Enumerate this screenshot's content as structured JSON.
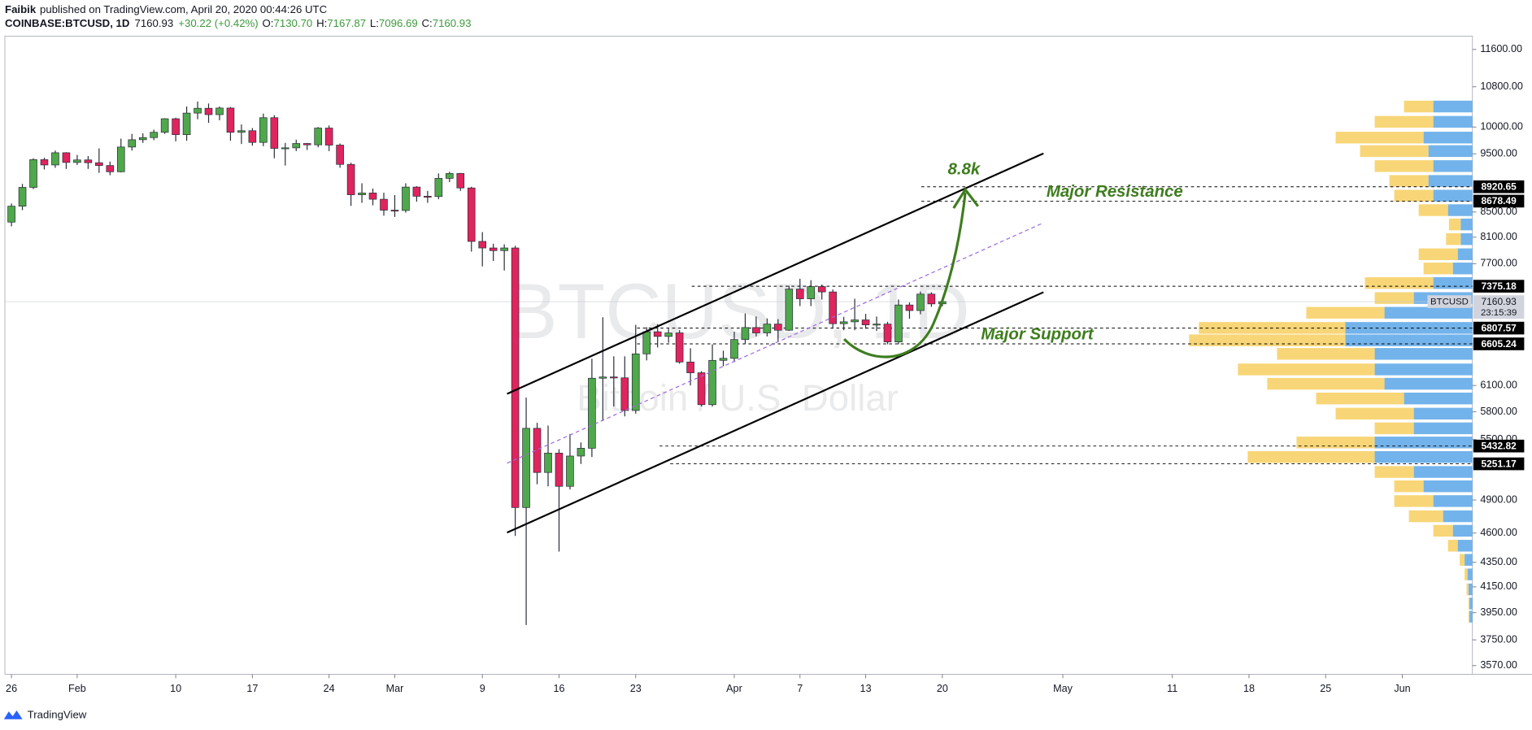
{
  "header": {
    "author": "Faibik",
    "published": "published on TradingView.com, April 20, 2020 00:44:26 UTC",
    "symbol": "COINBASE:BTCUSD, 1D",
    "last": "7160.93",
    "change": "+30.22 (+0.42%)",
    "ohlc": [
      {
        "label": "O:",
        "value": "7130.70"
      },
      {
        "label": "H:",
        "value": "7167.87"
      },
      {
        "label": "L:",
        "value": "7096.69"
      },
      {
        "label": "C:",
        "value": "7160.93"
      }
    ]
  },
  "chart_data": {
    "type": "candlestick",
    "watermark": "BTCUSD, 1D",
    "watermark_subtitle": "Bitcoin / U.S. Dollar",
    "annotations": [
      "8.8k",
      "Major Resistance",
      "Major Support"
    ],
    "x": [
      0,
      1,
      2,
      3,
      4,
      5,
      6,
      7,
      8,
      9,
      10,
      11,
      12,
      13,
      14,
      15,
      16,
      17,
      18,
      19,
      20,
      21,
      22,
      23,
      24,
      25,
      26,
      27,
      28,
      29,
      30,
      31,
      32,
      33,
      34,
      35,
      36,
      37,
      38,
      39,
      40,
      41,
      42,
      43,
      44,
      45,
      46,
      47,
      48,
      49,
      50,
      51,
      52,
      53,
      54,
      55,
      56,
      57,
      58,
      59,
      60,
      61,
      62,
      63,
      64,
      65,
      66,
      67,
      68,
      69,
      70,
      71,
      72,
      73,
      74,
      75,
      76,
      77,
      78,
      79,
      80,
      81,
      82,
      83,
      84,
      85
    ],
    "open": [
      8337,
      8595,
      8910,
      9395,
      9300,
      9520,
      9345,
      9390,
      9340,
      9290,
      9180,
      9625,
      9760,
      9800,
      9900,
      10160,
      9855,
      10270,
      10365,
      10240,
      10370,
      9900,
      9930,
      9710,
      10180,
      9600,
      9610,
      9690,
      9665,
      9980,
      9660,
      9310,
      8785,
      8815,
      8710,
      8530,
      8525,
      8915,
      8760,
      8755,
      9065,
      9150,
      8900,
      8035,
      7935,
      7895,
      7935,
      4830,
      5620,
      5165,
      5360,
      5030,
      5330,
      5410,
      6185,
      6200,
      6190,
      5815,
      6480,
      6760,
      6700,
      6745,
      6380,
      6250,
      5880,
      6400,
      6425,
      6660,
      6815,
      6745,
      6860,
      6780,
      7335,
      7200,
      7370,
      7295,
      6865,
      6890,
      6915,
      6850,
      6860,
      6630,
      7115,
      7040,
      7265,
      7130.7
    ],
    "high": [
      8640,
      8970,
      9420,
      9430,
      9560,
      9530,
      9480,
      9460,
      9600,
      9360,
      9780,
      9870,
      9880,
      9950,
      10170,
      10180,
      10400,
      10500,
      10460,
      10400,
      10390,
      10050,
      9980,
      10260,
      10230,
      9700,
      9760,
      9700,
      10000,
      10030,
      9690,
      9340,
      8980,
      8890,
      8820,
      8780,
      8980,
      8930,
      8850,
      9150,
      9180,
      9160,
      8920,
      8180,
      8000,
      7990,
      7970,
      5960,
      5680,
      5650,
      5400,
      5560,
      5470,
      6420,
      6950,
      6450,
      6450,
      6850,
      6820,
      6860,
      6800,
      6780,
      6550,
      6270,
      6600,
      6520,
      6760,
      7000,
      6960,
      6935,
      6925,
      7380,
      7480,
      7460,
      7400,
      7330,
      6955,
      7200,
      6995,
      6960,
      6890,
      7190,
      7150,
      7300,
      7290,
      7167.87
    ],
    "low": [
      8270,
      8530,
      8880,
      9220,
      9250,
      9230,
      9300,
      9230,
      9160,
      9120,
      9170,
      9560,
      9700,
      9750,
      9870,
      9730,
      9740,
      10150,
      10080,
      10130,
      9740,
      9680,
      9650,
      9640,
      9420,
      9290,
      9550,
      9570,
      9620,
      9550,
      9250,
      8600,
      8650,
      8610,
      8440,
      8420,
      8490,
      8670,
      8650,
      8710,
      9000,
      8850,
      7880,
      7660,
      7740,
      7600,
      4575,
      3858,
      5050,
      5030,
      4440,
      5000,
      5250,
      5320,
      5700,
      5860,
      5750,
      5780,
      6400,
      6560,
      6620,
      6360,
      6100,
      5860,
      5860,
      6330,
      6380,
      6600,
      6700,
      6700,
      6640,
      6770,
      7100,
      7100,
      7190,
      6800,
      6780,
      6780,
      6800,
      6770,
      6600,
      6600,
      6930,
      6990,
      7090,
      7096.69
    ],
    "close": [
      8595,
      8910,
      9395,
      9300,
      9520,
      9345,
      9390,
      9340,
      9290,
      9180,
      9625,
      9760,
      9800,
      9900,
      10160,
      9855,
      10270,
      10365,
      10240,
      10370,
      9900,
      9930,
      9710,
      10180,
      9600,
      9610,
      9690,
      9665,
      9980,
      9660,
      9310,
      8785,
      8815,
      8710,
      8530,
      8525,
      8915,
      8760,
      8755,
      9065,
      9150,
      8900,
      8035,
      7935,
      7895,
      7935,
      4830,
      5620,
      5165,
      5360,
      5030,
      5330,
      5410,
      6185,
      6200,
      6190,
      5815,
      6480,
      6760,
      6700,
      6745,
      6380,
      6250,
      5880,
      6400,
      6425,
      6660,
      6815,
      6745,
      6860,
      6780,
      7335,
      7200,
      7370,
      7295,
      6865,
      6890,
      6915,
      6850,
      6860,
      6630,
      7115,
      7040,
      7265,
      7130,
      7160.93
    ],
    "up_color": "#4fa84b",
    "down_color": "#e0245e",
    "xlim": [
      -0.6,
      133.4
    ],
    "xticks": [
      {
        "value": 0,
        "label": "26"
      },
      {
        "value": 6,
        "label": "Feb"
      },
      {
        "value": 15,
        "label": "10"
      },
      {
        "value": 22,
        "label": "17"
      },
      {
        "value": 29,
        "label": "24"
      },
      {
        "value": 35,
        "label": "Mar"
      },
      {
        "value": 43,
        "label": "9"
      },
      {
        "value": 50,
        "label": "16"
      },
      {
        "value": 57,
        "label": "23"
      },
      {
        "value": 66,
        "label": "Apr"
      },
      {
        "value": 72,
        "label": "7"
      },
      {
        "value": 78,
        "label": "13"
      },
      {
        "value": 85,
        "label": "20"
      },
      {
        "value": 96,
        "label": "May"
      },
      {
        "value": 106,
        "label": "11"
      },
      {
        "value": 113,
        "label": "18"
      },
      {
        "value": 120,
        "label": "25"
      },
      {
        "value": 127,
        "label": "Jun"
      }
    ],
    "ylim": [
      3511,
      11898
    ],
    "yscale": "log",
    "grid": false,
    "yticks": [
      {
        "value": 11600,
        "label": "11600.00"
      },
      {
        "value": 10800,
        "label": "10800.00"
      },
      {
        "value": 10000,
        "label": "10000.00"
      },
      {
        "value": 9500,
        "label": "9500.00"
      },
      {
        "value": 8500,
        "label": "8500.00"
      },
      {
        "value": 8100,
        "label": "8100.00"
      },
      {
        "value": 7700,
        "label": "7700.00"
      },
      {
        "value": 6100,
        "label": "6100.00"
      },
      {
        "value": 5800,
        "label": "5800.00"
      },
      {
        "value": 5500,
        "label": "5500.00"
      },
      {
        "value": 4900,
        "label": "4900.00"
      },
      {
        "value": 4600,
        "label": "4600.00"
      },
      {
        "value": 4350,
        "label": "4350.00"
      },
      {
        "value": 4150,
        "label": "4150.00"
      },
      {
        "value": 3950,
        "label": "3950.00"
      },
      {
        "value": 3750,
        "label": "3750.00"
      },
      {
        "value": 3570,
        "label": "3570.00"
      }
    ],
    "levels": [
      {
        "value": 8920.65,
        "label": "8920.65"
      },
      {
        "value": 8678.49,
        "label": "8678.49"
      },
      {
        "value": 7375.18,
        "label": "7375.18"
      },
      {
        "value": 6807.57,
        "label": "6807.57"
      },
      {
        "value": 6605.24,
        "label": "6605.24"
      },
      {
        "value": 5432.82,
        "label": "5432.82"
      },
      {
        "value": 5251.17,
        "label": "5251.17"
      }
    ],
    "last_price": {
      "name": "BTCUSD",
      "value": 7160.93,
      "countdown": "23:15:39"
    },
    "volume_profile": {
      "up_color": "#5aa6e8",
      "down_color": "#f7cf5f",
      "prices": [
        10400,
        10100,
        9800,
        9550,
        9280,
        9020,
        8770,
        8530,
        8300,
        8070,
        7840,
        7630,
        7420,
        7210,
        7010,
        6810,
        6650,
        6480,
        6290,
        6120,
        5950,
        5780,
        5620,
        5470,
        5320,
        5170,
        5030,
        4890,
        4750,
        4620,
        4490,
        4370,
        4250,
        4130,
        4020,
        3920
      ],
      "up": [
        40,
        40,
        50,
        45,
        40,
        45,
        40,
        25,
        12,
        12,
        15,
        20,
        40,
        60,
        90,
        130,
        130,
        100,
        100,
        90,
        70,
        60,
        60,
        100,
        100,
        60,
        50,
        40,
        30,
        20,
        15,
        8,
        5,
        4,
        3,
        3
      ],
      "down": [
        30,
        60,
        90,
        70,
        60,
        40,
        40,
        30,
        12,
        15,
        40,
        30,
        70,
        40,
        80,
        150,
        160,
        100,
        140,
        120,
        90,
        80,
        40,
        80,
        130,
        40,
        30,
        40,
        35,
        20,
        10,
        5,
        3,
        2,
        1,
        1
      ]
    }
  },
  "footer": {
    "brand": "TradingView"
  }
}
